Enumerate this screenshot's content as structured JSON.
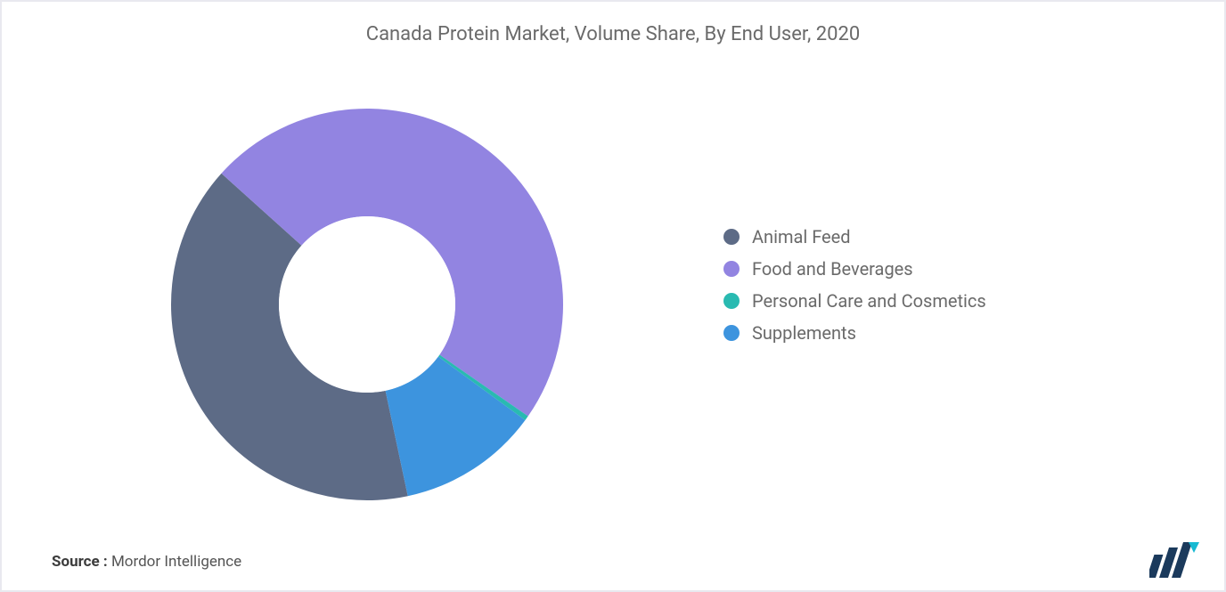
{
  "title": "Canada Protein Market, Volume Share, By End User, 2020",
  "chart": {
    "type": "donut",
    "series": [
      {
        "label": "Animal Feed",
        "value": 40,
        "color": "#5d6b86"
      },
      {
        "label": "Food and Beverages",
        "value": 48,
        "color": "#9284e1"
      },
      {
        "label": "Personal Care and Cosmetics",
        "value": 0.4,
        "color": "#29bab1"
      },
      {
        "label": "Supplements",
        "value": 11.6,
        "color": "#3d94de"
      }
    ],
    "start_angle_deg": 78,
    "inner_radius_ratio": 0.45,
    "background_color": "#ffffff",
    "size": 440
  },
  "legend_fontsize": 20,
  "legend_color": "#6a6a6a",
  "source_label": "Source :",
  "source_value": "Mordor Intelligence",
  "logo_colors": {
    "bars": "#1b3a5c",
    "accent": "#18b9d2"
  }
}
